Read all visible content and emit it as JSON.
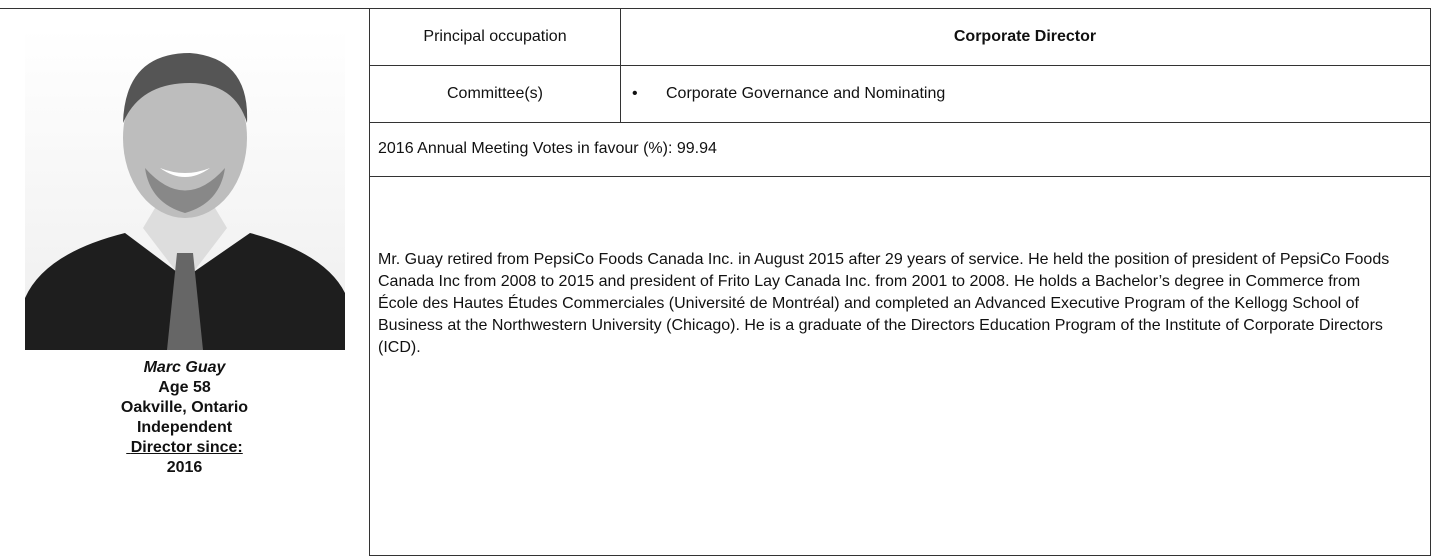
{
  "profile": {
    "name": "Marc Guay",
    "age": "Age 58",
    "location": "Oakville, Ontario",
    "status": "Independent",
    "director_since_label": "Director since:",
    "director_since": "2016"
  },
  "table": {
    "principal_occupation_label": "Principal occupation",
    "principal_occupation": "Corporate Director",
    "committees_label": "Committee(s)",
    "committees": [
      "Corporate Governance and Nominating"
    ],
    "votes": "2016 Annual Meeting Votes in favour (%): 99.94",
    "biography": "Mr. Guay retired from PepsiCo Foods Canada Inc. in August 2015 after 29 years of service. He held the position of president of PepsiCo Foods Canada Inc from 2008 to 2015 and president of Frito Lay Canada Inc. from 2001 to 2008. He holds a Bachelor’s degree in Commerce from École des Hautes Études Commerciales (Université de Montréal) and completed an Advanced Executive Program of the Kellogg School of Business at the Northwestern University (Chicago). He is a graduate of the Directors Education Program of the Institute of Corporate Directors (ICD)."
  }
}
